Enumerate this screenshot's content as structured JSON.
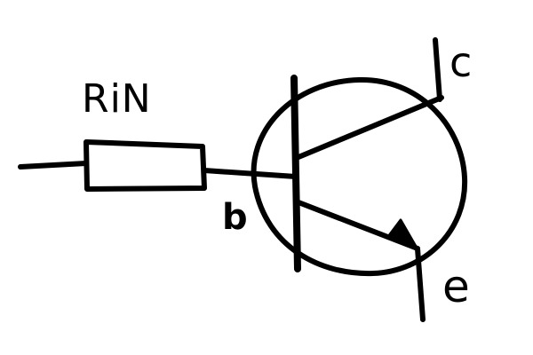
{
  "labels": {
    "resistor": "RiN",
    "base": "b",
    "collector": "c",
    "emitter": "e"
  },
  "colors": {
    "ink": "#000000",
    "background": "#ffffff"
  }
}
